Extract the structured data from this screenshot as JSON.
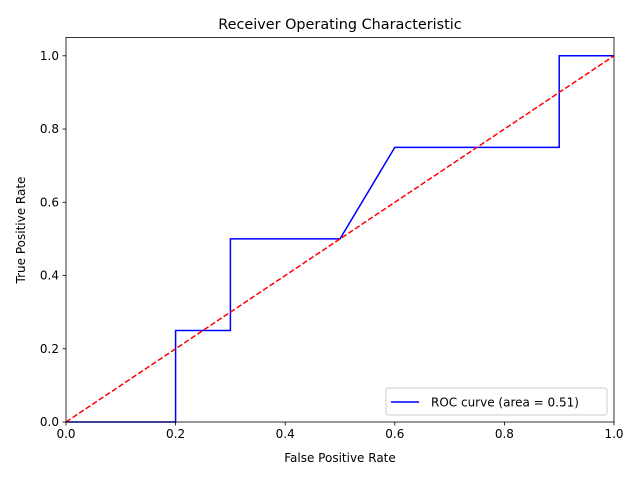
{
  "chart_data": {
    "type": "line",
    "title": "Receiver Operating Characteristic",
    "xlabel": "False Positive Rate",
    "ylabel": "True Positive Rate",
    "xlim": [
      0.0,
      1.0
    ],
    "ylim": [
      0.0,
      1.05
    ],
    "xticks": [
      "0.0",
      "0.2",
      "0.4",
      "0.6",
      "0.8",
      "1.0"
    ],
    "yticks": [
      "0.0",
      "0.2",
      "0.4",
      "0.6",
      "0.8",
      "1.0"
    ],
    "grid": false,
    "legend_position": "lower-right",
    "series": [
      {
        "name": "ROC curve (area = 0.51)",
        "color": "#0000ff",
        "style": "solid",
        "x": [
          0.0,
          0.2,
          0.2,
          0.3,
          0.3,
          0.5,
          0.6,
          0.9,
          0.9,
          1.0
        ],
        "y": [
          0.0,
          0.0,
          0.25,
          0.25,
          0.5,
          0.5,
          0.75,
          0.75,
          1.0,
          1.0
        ]
      },
      {
        "color": "#ff0000",
        "style": "dashed",
        "x": [
          0.0,
          1.0
        ],
        "y": [
          0.0,
          1.0
        ]
      }
    ]
  }
}
